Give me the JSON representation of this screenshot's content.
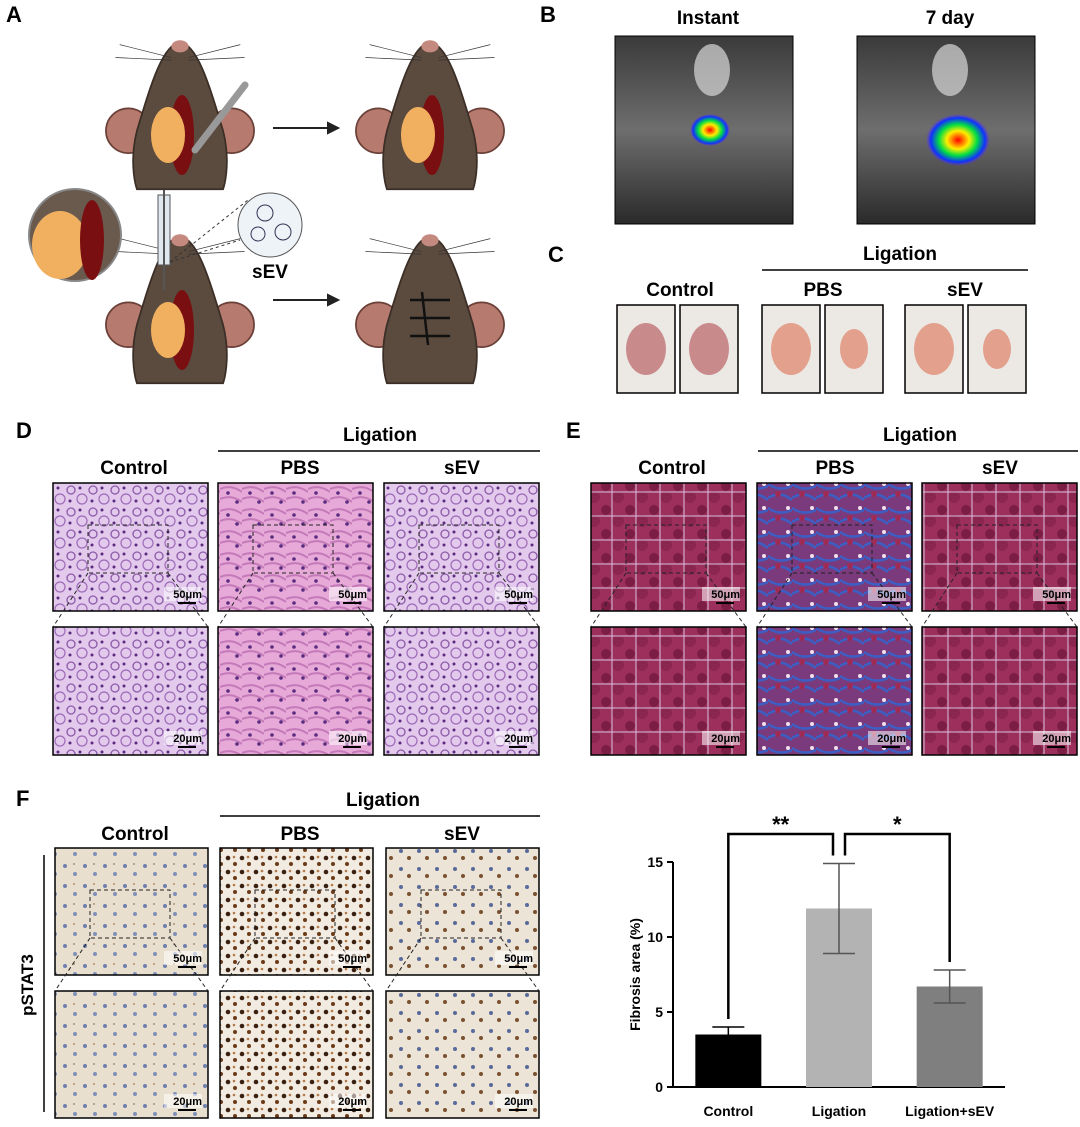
{
  "panel_labels": [
    "A",
    "B",
    "C",
    "D",
    "E",
    "F"
  ],
  "panel_a": {
    "sev_label": "sEV"
  },
  "panel_b": {
    "titles": [
      "Instant",
      "7 day"
    ]
  },
  "panel_c": {
    "group": "Ligation",
    "columns": [
      "Control",
      "PBS",
      "sEV"
    ]
  },
  "panel_d": {
    "group": "Ligation",
    "columns": [
      "Control",
      "PBS",
      "sEV"
    ],
    "scale_bars": [
      "50μm",
      "50μm",
      "50μm",
      "20μm",
      "20μm",
      "20μm"
    ]
  },
  "panel_e": {
    "group": "Ligation",
    "columns": [
      "Control",
      "PBS",
      "sEV"
    ],
    "scale_bars": [
      "50μm",
      "50μm",
      "50μm",
      "20μm",
      "20μm",
      "20μm"
    ]
  },
  "panel_f": {
    "group": "Ligation",
    "columns": [
      "Control",
      "PBS",
      "sEV"
    ],
    "row_label": "pSTAT3",
    "scale_bars": [
      "50μm",
      "50μm",
      "50μm",
      "20μm",
      "20μm",
      "20μm"
    ]
  },
  "chart_data": {
    "type": "bar",
    "ylabel": "Fibrosis area (%)",
    "categories": [
      "Control",
      "Ligation",
      "Ligation+sEV"
    ],
    "values": [
      3.5,
      11.9,
      6.7
    ],
    "errors": [
      0.5,
      3.0,
      1.1
    ],
    "colors": [
      "#000000",
      "#b3b3b3",
      "#7f7f7f"
    ],
    "ylim": [
      0,
      15
    ],
    "yticks": [
      0,
      5,
      10,
      15
    ],
    "significance": [
      {
        "pair": [
          "Control",
          "Ligation"
        ],
        "label": "**"
      },
      {
        "pair": [
          "Ligation",
          "Ligation+sEV"
        ],
        "label": "*"
      }
    ]
  }
}
